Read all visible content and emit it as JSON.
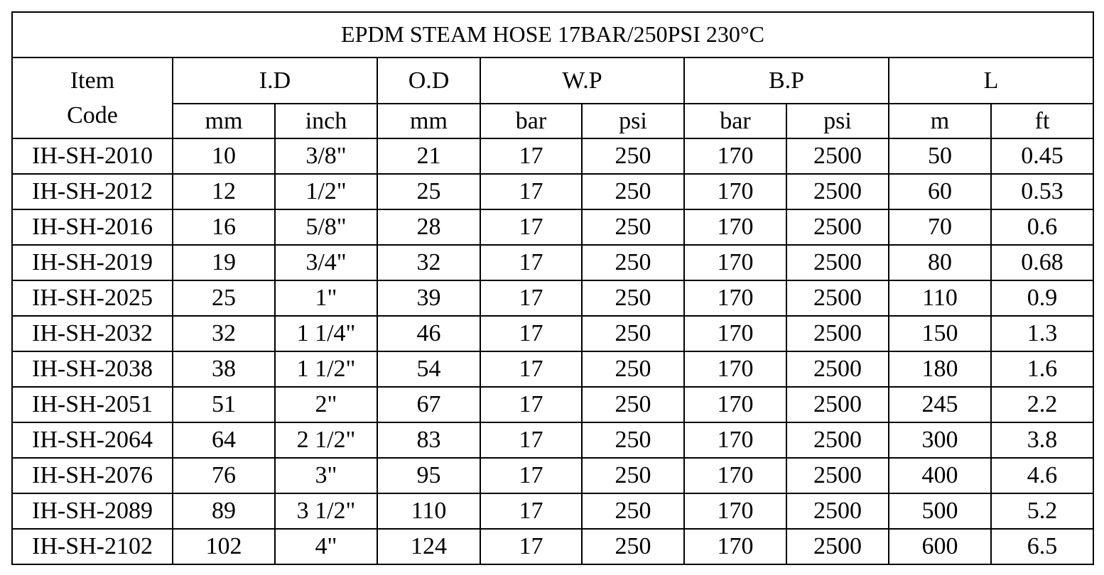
{
  "title": "EPDM STEAM HOSE 17BAR/250PSI 230°C",
  "header": {
    "item_code": "Item\nCode",
    "groups": [
      "I.D",
      "O.D",
      "W.P",
      "B.P",
      "L"
    ],
    "units": [
      "mm",
      "inch",
      "mm",
      "bar",
      "psi",
      "bar",
      "psi",
      "m",
      "ft"
    ]
  },
  "table": {
    "rows": [
      [
        "IH-SH-2010",
        10,
        "3/8\"",
        21,
        17,
        250,
        170,
        2500,
        50,
        0.45
      ],
      [
        "IH-SH-2012",
        12,
        "1/2\"",
        25,
        17,
        250,
        170,
        2500,
        60,
        0.53
      ],
      [
        "IH-SH-2016",
        16,
        "5/8\"",
        28,
        17,
        250,
        170,
        2500,
        70,
        0.6
      ],
      [
        "IH-SH-2019",
        19,
        "3/4\"",
        32,
        17,
        250,
        170,
        2500,
        80,
        0.68
      ],
      [
        "IH-SH-2025",
        25,
        "1\"",
        39,
        17,
        250,
        170,
        2500,
        110,
        0.9
      ],
      [
        "IH-SH-2032",
        32,
        "1 1/4\"",
        46,
        17,
        250,
        170,
        2500,
        150,
        1.3
      ],
      [
        "IH-SH-2038",
        38,
        "1 1/2\"",
        54,
        17,
        250,
        170,
        2500,
        180,
        1.6
      ],
      [
        "IH-SH-2051",
        51,
        "2\"",
        67,
        17,
        250,
        170,
        2500,
        245,
        2.2
      ],
      [
        "IH-SH-2064",
        64,
        "2 1/2\"",
        83,
        17,
        250,
        170,
        2500,
        300,
        3.8
      ],
      [
        "IH-SH-2076",
        76,
        "3\"",
        95,
        17,
        250,
        170,
        2500,
        400,
        4.6
      ],
      [
        "IH-SH-2089",
        89,
        "3 1/2\"",
        110,
        17,
        250,
        170,
        2500,
        500,
        5.2
      ],
      [
        "IH-SH-2102",
        102,
        "4\"",
        124,
        17,
        250,
        170,
        2500,
        600,
        6.5
      ]
    ]
  }
}
